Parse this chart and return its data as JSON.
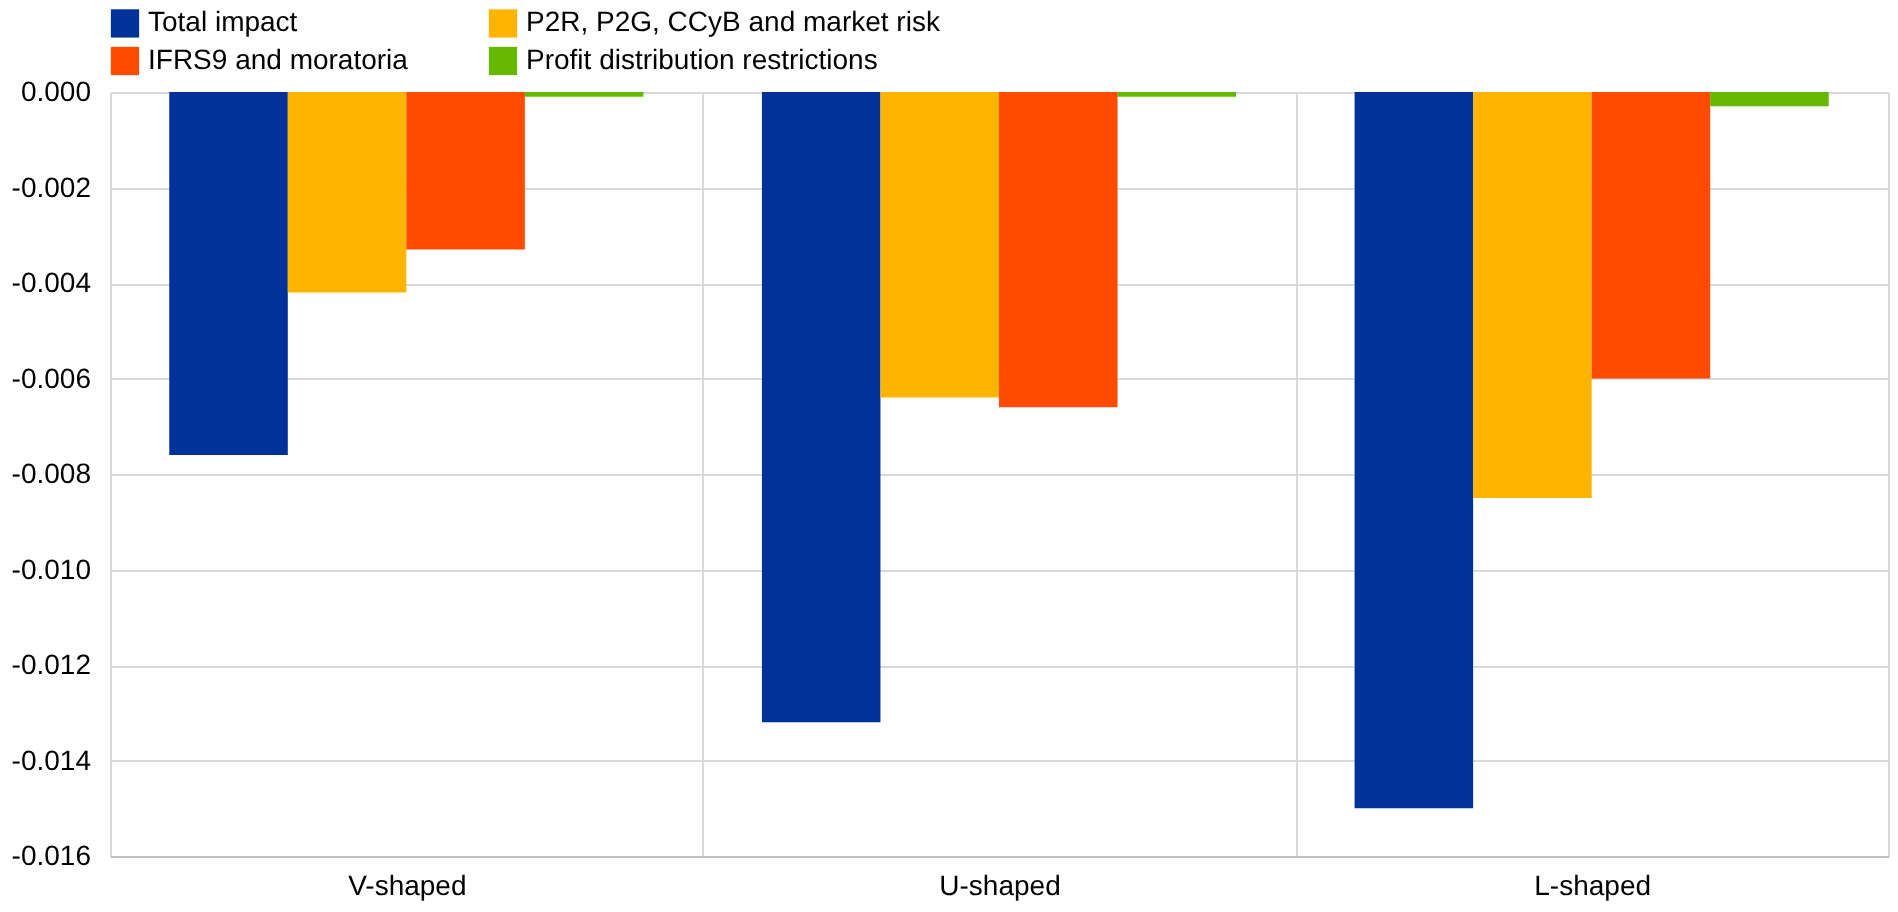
{
  "chart_data": {
    "type": "bar",
    "categories": [
      "V-shaped",
      "U-shaped",
      "L-shaped"
    ],
    "series": [
      {
        "name": "Total impact",
        "color": "#003299",
        "values": [
          -0.0076,
          -0.0132,
          -0.015
        ]
      },
      {
        "name": "P2R, P2G, CCyB and market risk",
        "color": "#ffb400",
        "values": [
          -0.0042,
          -0.0064,
          -0.0085
        ]
      },
      {
        "name": "IFRS9 and moratoria",
        "color": "#ff4b00",
        "values": [
          -0.0033,
          -0.0066,
          -0.006
        ]
      },
      {
        "name": "Profit distribution restrictions",
        "color": "#65b800",
        "values": [
          -0.0001,
          -0.0001,
          -0.0003
        ]
      }
    ],
    "ylim": [
      -0.016,
      0
    ],
    "yticks": [
      {
        "value": 0,
        "label": "0.000"
      },
      {
        "value": -0.002,
        "label": "-0.002"
      },
      {
        "value": -0.004,
        "label": "-0.004"
      },
      {
        "value": -0.006,
        "label": "-0.006"
      },
      {
        "value": -0.008,
        "label": "-0.008"
      },
      {
        "value": -0.01,
        "label": "-0.010"
      },
      {
        "value": -0.012,
        "label": "-0.012"
      },
      {
        "value": -0.014,
        "label": "-0.014"
      },
      {
        "value": -0.016,
        "label": "-0.016"
      }
    ],
    "grid": true,
    "legend": "top left"
  }
}
